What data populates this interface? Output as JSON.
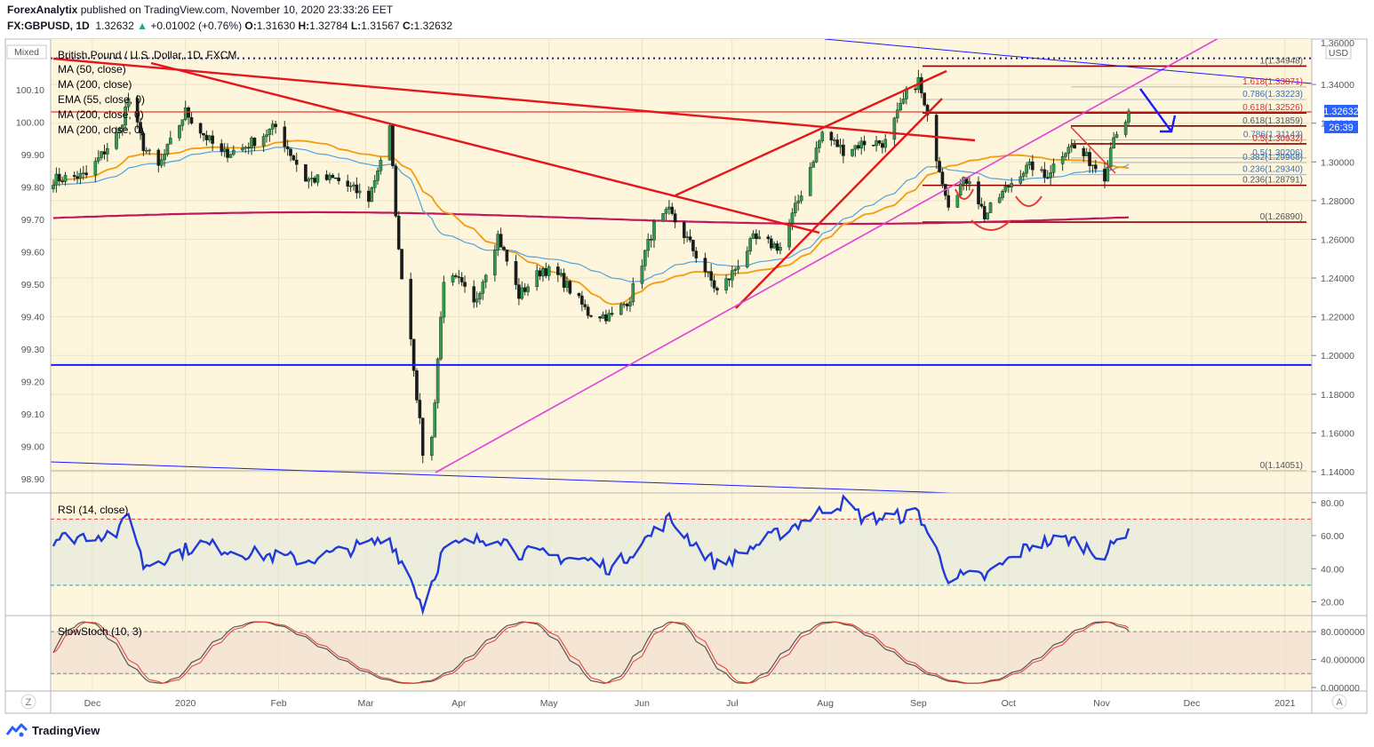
{
  "header": {
    "publisher": "ForexAnalytix",
    "published_text": "published on TradingView.com, November 10, 2020 23:33:26 EET",
    "symbol": "FX:GBPUSD, 1D",
    "last": "1.32632",
    "change": "+0.01002 (+0.76%)",
    "open_label": "O:",
    "open": "1.31630",
    "high_label": "H:",
    "high": "1.32784",
    "low_label": "L:",
    "low": "1.31567",
    "close_label": "C:",
    "close": "1.32632"
  },
  "footer": {
    "brand": "TradingView"
  },
  "pane_labels": {
    "left_scale_mode": "Mixed",
    "currency": "USD",
    "z_button": "Z",
    "auto_button": "A"
  },
  "colors": {
    "background": "#fdf6dc",
    "ma50": "#f39c12",
    "ema55": "#4ea3e0",
    "ma200": "#c2185b",
    "trend_red": "#e4161b",
    "trend_blue": "#1a1aff",
    "trend_magenta": "#e040d8",
    "rsi": "#1f3ad6",
    "stoch_k": "#555555",
    "stoch_d": "#e53935",
    "price_tag": "#2962ff"
  },
  "chart_data": [
    {
      "type": "candlestick",
      "title": "British Pound / U.S. Dollar, 1D, FXCM",
      "legend": [
        "MA (50, close)",
        "MA (200, close)",
        "EMA (55, close, 0)",
        "MA (200, close, 0)",
        "MA (200, close, 0)"
      ],
      "x_ticks": [
        "Dec",
        "2020",
        "Feb",
        "Mar",
        "Apr",
        "May",
        "Jun",
        "Jul",
        "Aug",
        "Sep",
        "Oct",
        "Nov",
        "Dec",
        "2021"
      ],
      "right_axis_ticks": [
        "1.14000",
        "1.16000",
        "1.18000",
        "1.20000",
        "1.22000",
        "1.24000",
        "1.26000",
        "1.28000",
        "1.30000",
        "1.32000",
        "1.34000"
      ],
      "right_axis_top_partial": "1.36000",
      "left_axis_ticks": [
        "98.90",
        "99.00",
        "99.10",
        "99.20",
        "99.30",
        "99.40",
        "99.50",
        "99.60",
        "99.70",
        "99.80",
        "99.90",
        "100.00",
        "100.10"
      ],
      "ylim": [
        1.1344,
        1.3593
      ],
      "current_price_label": "1.32632",
      "countdown_label": "26:39",
      "close_series_anchors": [
        [
          "2019-11-18",
          1.291
        ],
        [
          "2019-11-29",
          1.293
        ],
        [
          "2019-12-10",
          1.316
        ],
        [
          "2019-12-13",
          1.333
        ],
        [
          "2019-12-18",
          1.308
        ],
        [
          "2019-12-23",
          1.297
        ],
        [
          "2020-01-01",
          1.326
        ],
        [
          "2020-01-06",
          1.316
        ],
        [
          "2020-01-13",
          1.304
        ],
        [
          "2020-01-20",
          1.307
        ],
        [
          "2020-01-31",
          1.318
        ],
        [
          "2020-02-10",
          1.291
        ],
        [
          "2020-02-20",
          1.291
        ],
        [
          "2020-03-02",
          1.281
        ],
        [
          "2020-03-09",
          1.317
        ],
        [
          "2020-03-12",
          1.253
        ],
        [
          "2020-03-16",
          1.209
        ],
        [
          "2020-03-20",
          1.15
        ],
        [
          "2020-03-23",
          1.157
        ],
        [
          "2020-03-27",
          1.24
        ],
        [
          "2020-04-01",
          1.238
        ],
        [
          "2020-04-06",
          1.226
        ],
        [
          "2020-04-14",
          1.262
        ],
        [
          "2020-04-21",
          1.231
        ],
        [
          "2020-04-29",
          1.245
        ],
        [
          "2020-05-05",
          1.24
        ],
        [
          "2020-05-14",
          1.222
        ],
        [
          "2020-05-22",
          1.22
        ],
        [
          "2020-05-28",
          1.23
        ],
        [
          "2020-06-05",
          1.267
        ],
        [
          "2020-06-10",
          1.274
        ],
        [
          "2020-06-16",
          1.26
        ],
        [
          "2020-06-26",
          1.233
        ],
        [
          "2020-06-30",
          1.24
        ],
        [
          "2020-07-08",
          1.26
        ],
        [
          "2020-07-17",
          1.256
        ],
        [
          "2020-07-23",
          1.28
        ],
        [
          "2020-07-31",
          1.315
        ],
        [
          "2020-08-07",
          1.306
        ],
        [
          "2020-08-14",
          1.31
        ],
        [
          "2020-08-21",
          1.31
        ],
        [
          "2020-08-28",
          1.335
        ],
        [
          "2020-09-01",
          1.342
        ],
        [
          "2020-09-03",
          1.328
        ],
        [
          "2020-09-08",
          1.297
        ],
        [
          "2020-09-11",
          1.279
        ],
        [
          "2020-09-15",
          1.288
        ],
        [
          "2020-09-18",
          1.292
        ],
        [
          "2020-09-23",
          1.272
        ],
        [
          "2020-09-28",
          1.282
        ],
        [
          "2020-10-05",
          1.295
        ],
        [
          "2020-10-09",
          1.298
        ],
        [
          "2020-10-13",
          1.292
        ],
        [
          "2020-10-21",
          1.309
        ],
        [
          "2020-10-27",
          1.302
        ],
        [
          "2020-11-02",
          1.293
        ],
        [
          "2020-11-05",
          1.315
        ],
        [
          "2020-11-09",
          1.318
        ],
        [
          "2020-11-10",
          1.32632
        ]
      ],
      "fib_levels": [
        {
          "label": "1(1.34948)",
          "value": 1.34948
        },
        {
          "label": "1.618(1.33871)",
          "value": 1.33871
        },
        {
          "label": "0.786(1.33223)",
          "value": 1.33223
        },
        {
          "label": "0.618(1.32526)",
          "value": 1.32526
        },
        {
          "label": "0.618(1.31859)",
          "value": 1.31859
        },
        {
          "label": "0.786(1.31143)",
          "value": 1.31143
        },
        {
          "label": "0.5(1.30932)",
          "value": 1.30932
        },
        {
          "label": "0.5(1.30206)",
          "value": 1.30206
        },
        {
          "label": "0.382(1.29968)",
          "value": 1.29968
        },
        {
          "label": "0.236(1.29340)",
          "value": 1.2934
        },
        {
          "label": "0.236(1.28791)",
          "value": 1.28791
        },
        {
          "label": "0(1.26890)",
          "value": 1.2689
        },
        {
          "label": "0(1.14051)",
          "value": 1.14051
        }
      ],
      "support_level": 1.1951,
      "dotted_resistance": 1.3535
    },
    {
      "type": "line",
      "title": "RSI (14, close)",
      "y_ticks": [
        "20.00",
        "40.00",
        "60.00",
        "80.00"
      ],
      "ylim": [
        12,
        85
      ],
      "bands": [
        30,
        70
      ],
      "values_anchors": [
        [
          "2019-11-18",
          58
        ],
        [
          "2019-12-10",
          62
        ],
        [
          "2019-12-13",
          76
        ],
        [
          "2019-12-18",
          42
        ],
        [
          "2020-01-06",
          55
        ],
        [
          "2020-01-20",
          50
        ],
        [
          "2020-02-10",
          45
        ],
        [
          "2020-03-09",
          58
        ],
        [
          "2020-03-16",
          34
        ],
        [
          "2020-03-20",
          17
        ],
        [
          "2020-03-27",
          52
        ],
        [
          "2020-04-14",
          60
        ],
        [
          "2020-04-21",
          50
        ],
        [
          "2020-05-14",
          45
        ],
        [
          "2020-05-22",
          40
        ],
        [
          "2020-06-10",
          70
        ],
        [
          "2020-06-26",
          42
        ],
        [
          "2020-07-31",
          75
        ],
        [
          "2020-08-07",
          80
        ],
        [
          "2020-08-14",
          70
        ],
        [
          "2020-08-28",
          72
        ],
        [
          "2020-09-01",
          74
        ],
        [
          "2020-09-11",
          35
        ],
        [
          "2020-09-23",
          35
        ],
        [
          "2020-10-09",
          55
        ],
        [
          "2020-10-21",
          58
        ],
        [
          "2020-11-02",
          48
        ],
        [
          "2020-11-10",
          65
        ]
      ]
    },
    {
      "type": "line",
      "title": "SlowStoch (10, 3)",
      "y_ticks": [
        "0.000000",
        "40.000000",
        "80.000000"
      ],
      "ylim": [
        0,
        100
      ],
      "bands": [
        20,
        80
      ],
      "series": [
        {
          "name": "%K"
        },
        {
          "name": "%D"
        }
      ]
    }
  ]
}
